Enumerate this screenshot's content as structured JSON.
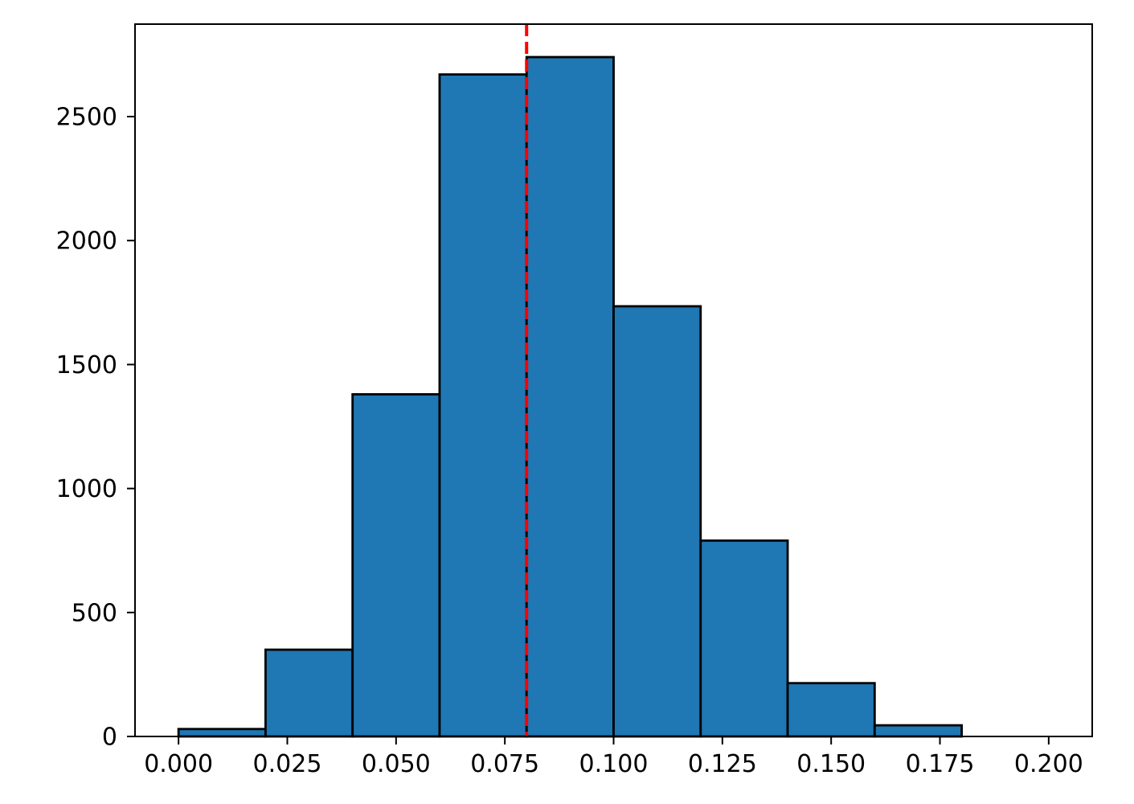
{
  "figure": {
    "background": "#ffffff",
    "plot_background": "#ffffff",
    "spine_color": "#000000",
    "tick_color": "#000000",
    "tick_label_color": "#000000"
  },
  "chart_data": {
    "type": "bar",
    "subtype": "histogram",
    "title": "",
    "xlabel": "",
    "ylabel": "",
    "bin_edges": [
      0.0,
      0.02,
      0.04,
      0.06,
      0.08,
      0.1,
      0.12,
      0.14,
      0.16,
      0.18,
      0.2
    ],
    "counts": [
      30,
      350,
      1380,
      2670,
      2740,
      1735,
      790,
      215,
      45,
      0
    ],
    "bar_fill": "#1f77b4",
    "bar_edge": "#000000",
    "vline": {
      "x": 0.08,
      "color": "#ff0000",
      "style": "dashed"
    },
    "xlim": [
      -0.01,
      0.21
    ],
    "ylim": [
      0,
      2873
    ],
    "xticks": {
      "values": [
        0.0,
        0.025,
        0.05,
        0.075,
        0.1,
        0.125,
        0.15,
        0.175,
        0.2
      ],
      "labels": [
        "0.000",
        "0.025",
        "0.050",
        "0.075",
        "0.100",
        "0.125",
        "0.150",
        "0.175",
        "0.200"
      ]
    },
    "yticks": {
      "values": [
        0,
        500,
        1000,
        1500,
        2000,
        2500
      ],
      "labels": [
        "0",
        "500",
        "1000",
        "1500",
        "2000",
        "2500"
      ]
    },
    "grid": false,
    "legend": null
  }
}
